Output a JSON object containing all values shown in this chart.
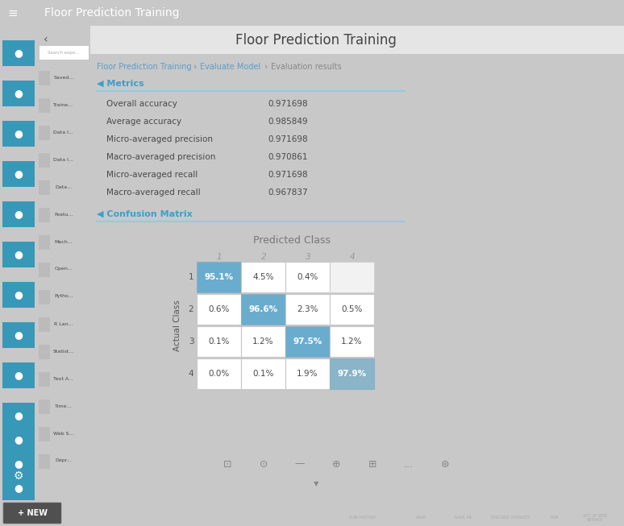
{
  "title": "Floor Prediction Training",
  "metrics": [
    [
      "Overall accuracy",
      "0.971698"
    ],
    [
      "Average accuracy",
      "0.985849"
    ],
    [
      "Micro-averaged precision",
      "0.971698"
    ],
    [
      "Macro-averaged precision",
      "0.970861"
    ],
    [
      "Micro-averaged recall",
      "0.971698"
    ],
    [
      "Macro-averaged recall",
      "0.967837"
    ]
  ],
  "matrix": [
    [
      "95.1%",
      "4.5%",
      "0.4%",
      ""
    ],
    [
      "0.6%",
      "96.6%",
      "2.3%",
      "0.5%"
    ],
    [
      "0.1%",
      "1.2%",
      "97.5%",
      "1.2%"
    ],
    [
      "0.0%",
      "0.1%",
      "1.9%",
      "97.9%"
    ]
  ],
  "class_labels": [
    "1",
    "2",
    "3",
    "4"
  ],
  "diag_color": "#6aacce",
  "diag_last_color": "#8ab4c8",
  "offdiag_color": "#ffffff",
  "cell_border_color": "#c8c8c8",
  "bg_color": "#ffffff",
  "sidebar_blue": "#3fa8cc",
  "topbar_color": "#2d2d2d",
  "bottombar_color": "#383838",
  "grey_panel_color": "#d8d8d8",
  "content_header_bg": "#e8e8e8",
  "metrics_header_color": "#3aa0c8",
  "text_color": "#484848",
  "breadcrumb_link_color": "#5a9ec7",
  "breadcrumb_sep_color": "#888888",
  "panel_bg": "#c8c8c8"
}
